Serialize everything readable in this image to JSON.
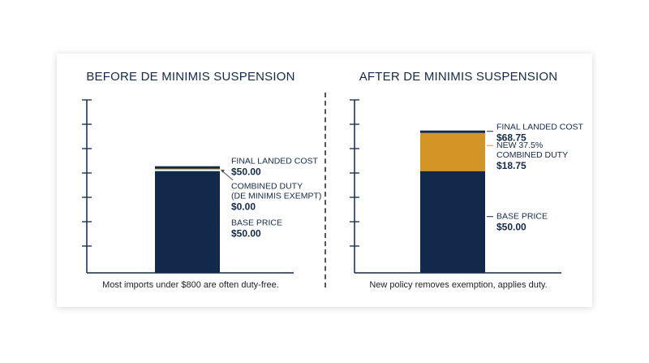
{
  "colors": {
    "navy": "#13294b",
    "gold": "#d39525",
    "gray": "#4a4a4a",
    "axis": "#13294b"
  },
  "chart_data": [
    {
      "type": "bar",
      "stacked": true,
      "title": "BEFORE DE MINIMIS SUSPENSION",
      "caption": "Most imports under $800 are often duty-free.",
      "ylim": [
        0,
        85
      ],
      "series": [
        {
          "name": "BASE PRICE",
          "values": [
            50.0
          ]
        },
        {
          "name": "COMBINED DUTY",
          "values": [
            0.0
          ]
        }
      ],
      "total": 50.0,
      "annotations": {
        "final_label": "FINAL LANDED COST",
        "final_value": "$50.00",
        "duty_label_line1": "COMBINED DUTY",
        "duty_label_line2": "(DE MINIMIS EXEMPT)",
        "duty_value": "$0.00",
        "base_label": "BASE PRICE",
        "base_value": "$50.00"
      }
    },
    {
      "type": "bar",
      "stacked": true,
      "title": "AFTER DE MINIMIS SUSPENSION",
      "caption": "New policy removes exemption, applies duty.",
      "ylim": [
        0,
        85
      ],
      "series": [
        {
          "name": "BASE PRICE",
          "values": [
            50.0
          ]
        },
        {
          "name": "NEW 37.5% COMBINED DUTY",
          "values": [
            18.75
          ]
        }
      ],
      "total": 68.75,
      "annotations": {
        "final_label": "FINAL LANDED COST",
        "final_value": "$68.75",
        "duty_label_line1": "NEW 37.5%",
        "duty_label_line2": "COMBINED DUTY",
        "duty_value": "$18.75",
        "base_label": "BASE PRICE",
        "base_value": "$50.00"
      }
    }
  ]
}
